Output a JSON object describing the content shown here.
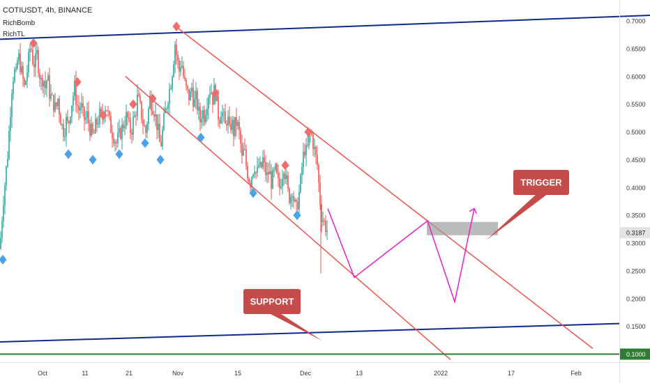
{
  "header": {
    "symbol_line": "COTIUSDT, 4h, BINANCE",
    "indicator_1": "RichBomb",
    "indicator_2": "RichTL"
  },
  "colors": {
    "up": "#26a69a",
    "down": "#ef5350",
    "channel": "#ef5350",
    "trendline": "#0d2b8c",
    "support_line": "#2e7d32",
    "projection": "#e91ec8",
    "diamond_top": "#f06d6d",
    "diamond_bottom": "#4aa3e8",
    "callout_bg": "#c64b4b",
    "zone": "#9e9e9e"
  },
  "chart_data": {
    "type": "candlestick",
    "symbol": "COTIUSDT",
    "interval": "4h",
    "exchange": "BINANCE",
    "x_ticks": [
      "Oct",
      "11",
      "21",
      "Nov",
      "15",
      "Dec",
      "13",
      "2022",
      "17",
      "Feb"
    ],
    "y_ticks": [
      "0.7000",
      "0.6500",
      "0.6000",
      "0.5500",
      "0.5000",
      "0.4500",
      "0.4000",
      "0.3500",
      "0.3000",
      "0.2500",
      "0.2000",
      "0.1500",
      "0.1000"
    ],
    "ylim": [
      0.085,
      0.735
    ],
    "last_price": "0.3187",
    "support_price": "0.1000",
    "close_path": [
      [
        0,
        0.29
      ],
      [
        2,
        0.33
      ],
      [
        5,
        0.38
      ],
      [
        8,
        0.42
      ],
      [
        11,
        0.46
      ],
      [
        14,
        0.52
      ],
      [
        17,
        0.58
      ],
      [
        20,
        0.61
      ],
      [
        23,
        0.6
      ],
      [
        26,
        0.64
      ],
      [
        29,
        0.62
      ],
      [
        32,
        0.6
      ],
      [
        35,
        0.58
      ],
      [
        38,
        0.6
      ],
      [
        41,
        0.63
      ],
      [
        44,
        0.66
      ],
      [
        47,
        0.63
      ],
      [
        50,
        0.62
      ],
      [
        53,
        0.64
      ],
      [
        56,
        0.61
      ],
      [
        59,
        0.59
      ],
      [
        62,
        0.6
      ],
      [
        65,
        0.58
      ],
      [
        68,
        0.6
      ],
      [
        71,
        0.57
      ],
      [
        74,
        0.56
      ],
      [
        77,
        0.55
      ],
      [
        80,
        0.54
      ],
      [
        83,
        0.56
      ],
      [
        86,
        0.53
      ],
      [
        89,
        0.51
      ],
      [
        92,
        0.5
      ],
      [
        95,
        0.52
      ],
      [
        98,
        0.51
      ],
      [
        101,
        0.54
      ],
      [
        104,
        0.56
      ],
      [
        107,
        0.58
      ],
      [
        110,
        0.55
      ],
      [
        113,
        0.54
      ],
      [
        116,
        0.55
      ],
      [
        119,
        0.53
      ],
      [
        122,
        0.52
      ],
      [
        125,
        0.53
      ],
      [
        128,
        0.51
      ],
      [
        131,
        0.5
      ],
      [
        134,
        0.49
      ],
      [
        137,
        0.51
      ],
      [
        140,
        0.52
      ],
      [
        143,
        0.53
      ],
      [
        146,
        0.52
      ],
      [
        149,
        0.54
      ],
      [
        152,
        0.55
      ],
      [
        155,
        0.53
      ],
      [
        158,
        0.51
      ],
      [
        161,
        0.5
      ],
      [
        164,
        0.49
      ],
      [
        167,
        0.48
      ],
      [
        170,
        0.49
      ],
      [
        173,
        0.5
      ],
      [
        176,
        0.51
      ],
      [
        179,
        0.52
      ],
      [
        182,
        0.53
      ],
      [
        185,
        0.51
      ],
      [
        188,
        0.5
      ],
      [
        191,
        0.52
      ],
      [
        194,
        0.53
      ],
      [
        197,
        0.56
      ],
      [
        200,
        0.55
      ],
      [
        203,
        0.53
      ],
      [
        206,
        0.51
      ],
      [
        209,
        0.5
      ],
      [
        212,
        0.53
      ],
      [
        215,
        0.56
      ],
      [
        218,
        0.55
      ],
      [
        221,
        0.54
      ],
      [
        224,
        0.52
      ],
      [
        227,
        0.5
      ],
      [
        230,
        0.47
      ],
      [
        233,
        0.5
      ],
      [
        236,
        0.53
      ],
      [
        239,
        0.55
      ],
      [
        242,
        0.57
      ],
      [
        245,
        0.59
      ],
      [
        248,
        0.62
      ],
      [
        251,
        0.66
      ],
      [
        254,
        0.63
      ],
      [
        257,
        0.61
      ],
      [
        260,
        0.63
      ],
      [
        263,
        0.6
      ],
      [
        266,
        0.58
      ],
      [
        269,
        0.57
      ],
      [
        272,
        0.56
      ],
      [
        275,
        0.58
      ],
      [
        278,
        0.55
      ],
      [
        281,
        0.56
      ],
      [
        284,
        0.54
      ],
      [
        287,
        0.52
      ],
      [
        290,
        0.54
      ],
      [
        293,
        0.53
      ],
      [
        296,
        0.55
      ],
      [
        299,
        0.57
      ],
      [
        302,
        0.58
      ],
      [
        305,
        0.56
      ],
      [
        308,
        0.58
      ],
      [
        311,
        0.55
      ],
      [
        314,
        0.52
      ],
      [
        317,
        0.54
      ],
      [
        320,
        0.53
      ],
      [
        323,
        0.51
      ],
      [
        326,
        0.53
      ],
      [
        329,
        0.5
      ],
      [
        332,
        0.52
      ],
      [
        335,
        0.5
      ],
      [
        338,
        0.52
      ],
      [
        341,
        0.51
      ],
      [
        344,
        0.49
      ],
      [
        347,
        0.45
      ],
      [
        350,
        0.47
      ],
      [
        353,
        0.44
      ],
      [
        356,
        0.42
      ],
      [
        359,
        0.41
      ],
      [
        362,
        0.43
      ],
      [
        365,
        0.44
      ],
      [
        368,
        0.42
      ],
      [
        371,
        0.44
      ],
      [
        374,
        0.43
      ],
      [
        377,
        0.45
      ],
      [
        380,
        0.43
      ],
      [
        383,
        0.42
      ],
      [
        386,
        0.43
      ],
      [
        389,
        0.41
      ],
      [
        392,
        0.42
      ],
      [
        395,
        0.43
      ],
      [
        398,
        0.41
      ],
      [
        401,
        0.4
      ],
      [
        404,
        0.42
      ],
      [
        407,
        0.44
      ],
      [
        410,
        0.42
      ],
      [
        413,
        0.39
      ],
      [
        416,
        0.38
      ],
      [
        419,
        0.4
      ],
      [
        422,
        0.37
      ],
      [
        425,
        0.36
      ],
      [
        428,
        0.38
      ],
      [
        431,
        0.41
      ],
      [
        434,
        0.45
      ],
      [
        437,
        0.47
      ],
      [
        440,
        0.46
      ],
      [
        443,
        0.49
      ],
      [
        446,
        0.5
      ],
      [
        449,
        0.48
      ],
      [
        452,
        0.46
      ],
      [
        455,
        0.44
      ],
      [
        458,
        0.39
      ],
      [
        461,
        0.35
      ],
      [
        464,
        0.34
      ],
      [
        467,
        0.33
      ],
      [
        470,
        0.32
      ]
    ],
    "markers_top": [
      [
        48,
        0.66
      ],
      [
        111,
        0.59
      ],
      [
        148,
        0.53
      ],
      [
        191,
        0.55
      ],
      [
        219,
        0.56
      ],
      [
        253,
        0.69
      ],
      [
        309,
        0.57
      ],
      [
        409,
        0.44
      ],
      [
        442,
        0.5
      ]
    ],
    "markers_bottom": [
      [
        4,
        0.27
      ],
      [
        98,
        0.46
      ],
      [
        133,
        0.45
      ],
      [
        171,
        0.46
      ],
      [
        208,
        0.48
      ],
      [
        230,
        0.45
      ],
      [
        288,
        0.49
      ],
      [
        363,
        0.39
      ],
      [
        426,
        0.35
      ]
    ],
    "drawings": {
      "upper_trendline": [
        [
          0,
          0.667
        ],
        [
          932,
          0.71
        ]
      ],
      "lower_trendline": [
        [
          0,
          0.122
        ],
        [
          888,
          0.155
        ]
      ],
      "channel_upper": [
        [
          252,
          0.69
        ],
        [
          850,
          0.11
        ]
      ],
      "channel_lower": [
        [
          180,
          0.6
        ],
        [
          646,
          0.09
        ]
      ],
      "projection_path": [
        [
          470,
          0.362
        ],
        [
          508,
          0.238
        ],
        [
          613,
          0.34
        ],
        [
          652,
          0.194
        ],
        [
          680,
          0.362
        ]
      ],
      "zone": [
        [
          612,
          0.338
        ],
        [
          714,
          0.314
        ]
      ]
    },
    "annotations": [
      {
        "text": "TRIGGER",
        "target": [
          697,
          0.305
        ]
      },
      {
        "text": "SUPPORT",
        "target": [
          462,
          0.124
        ]
      }
    ]
  }
}
